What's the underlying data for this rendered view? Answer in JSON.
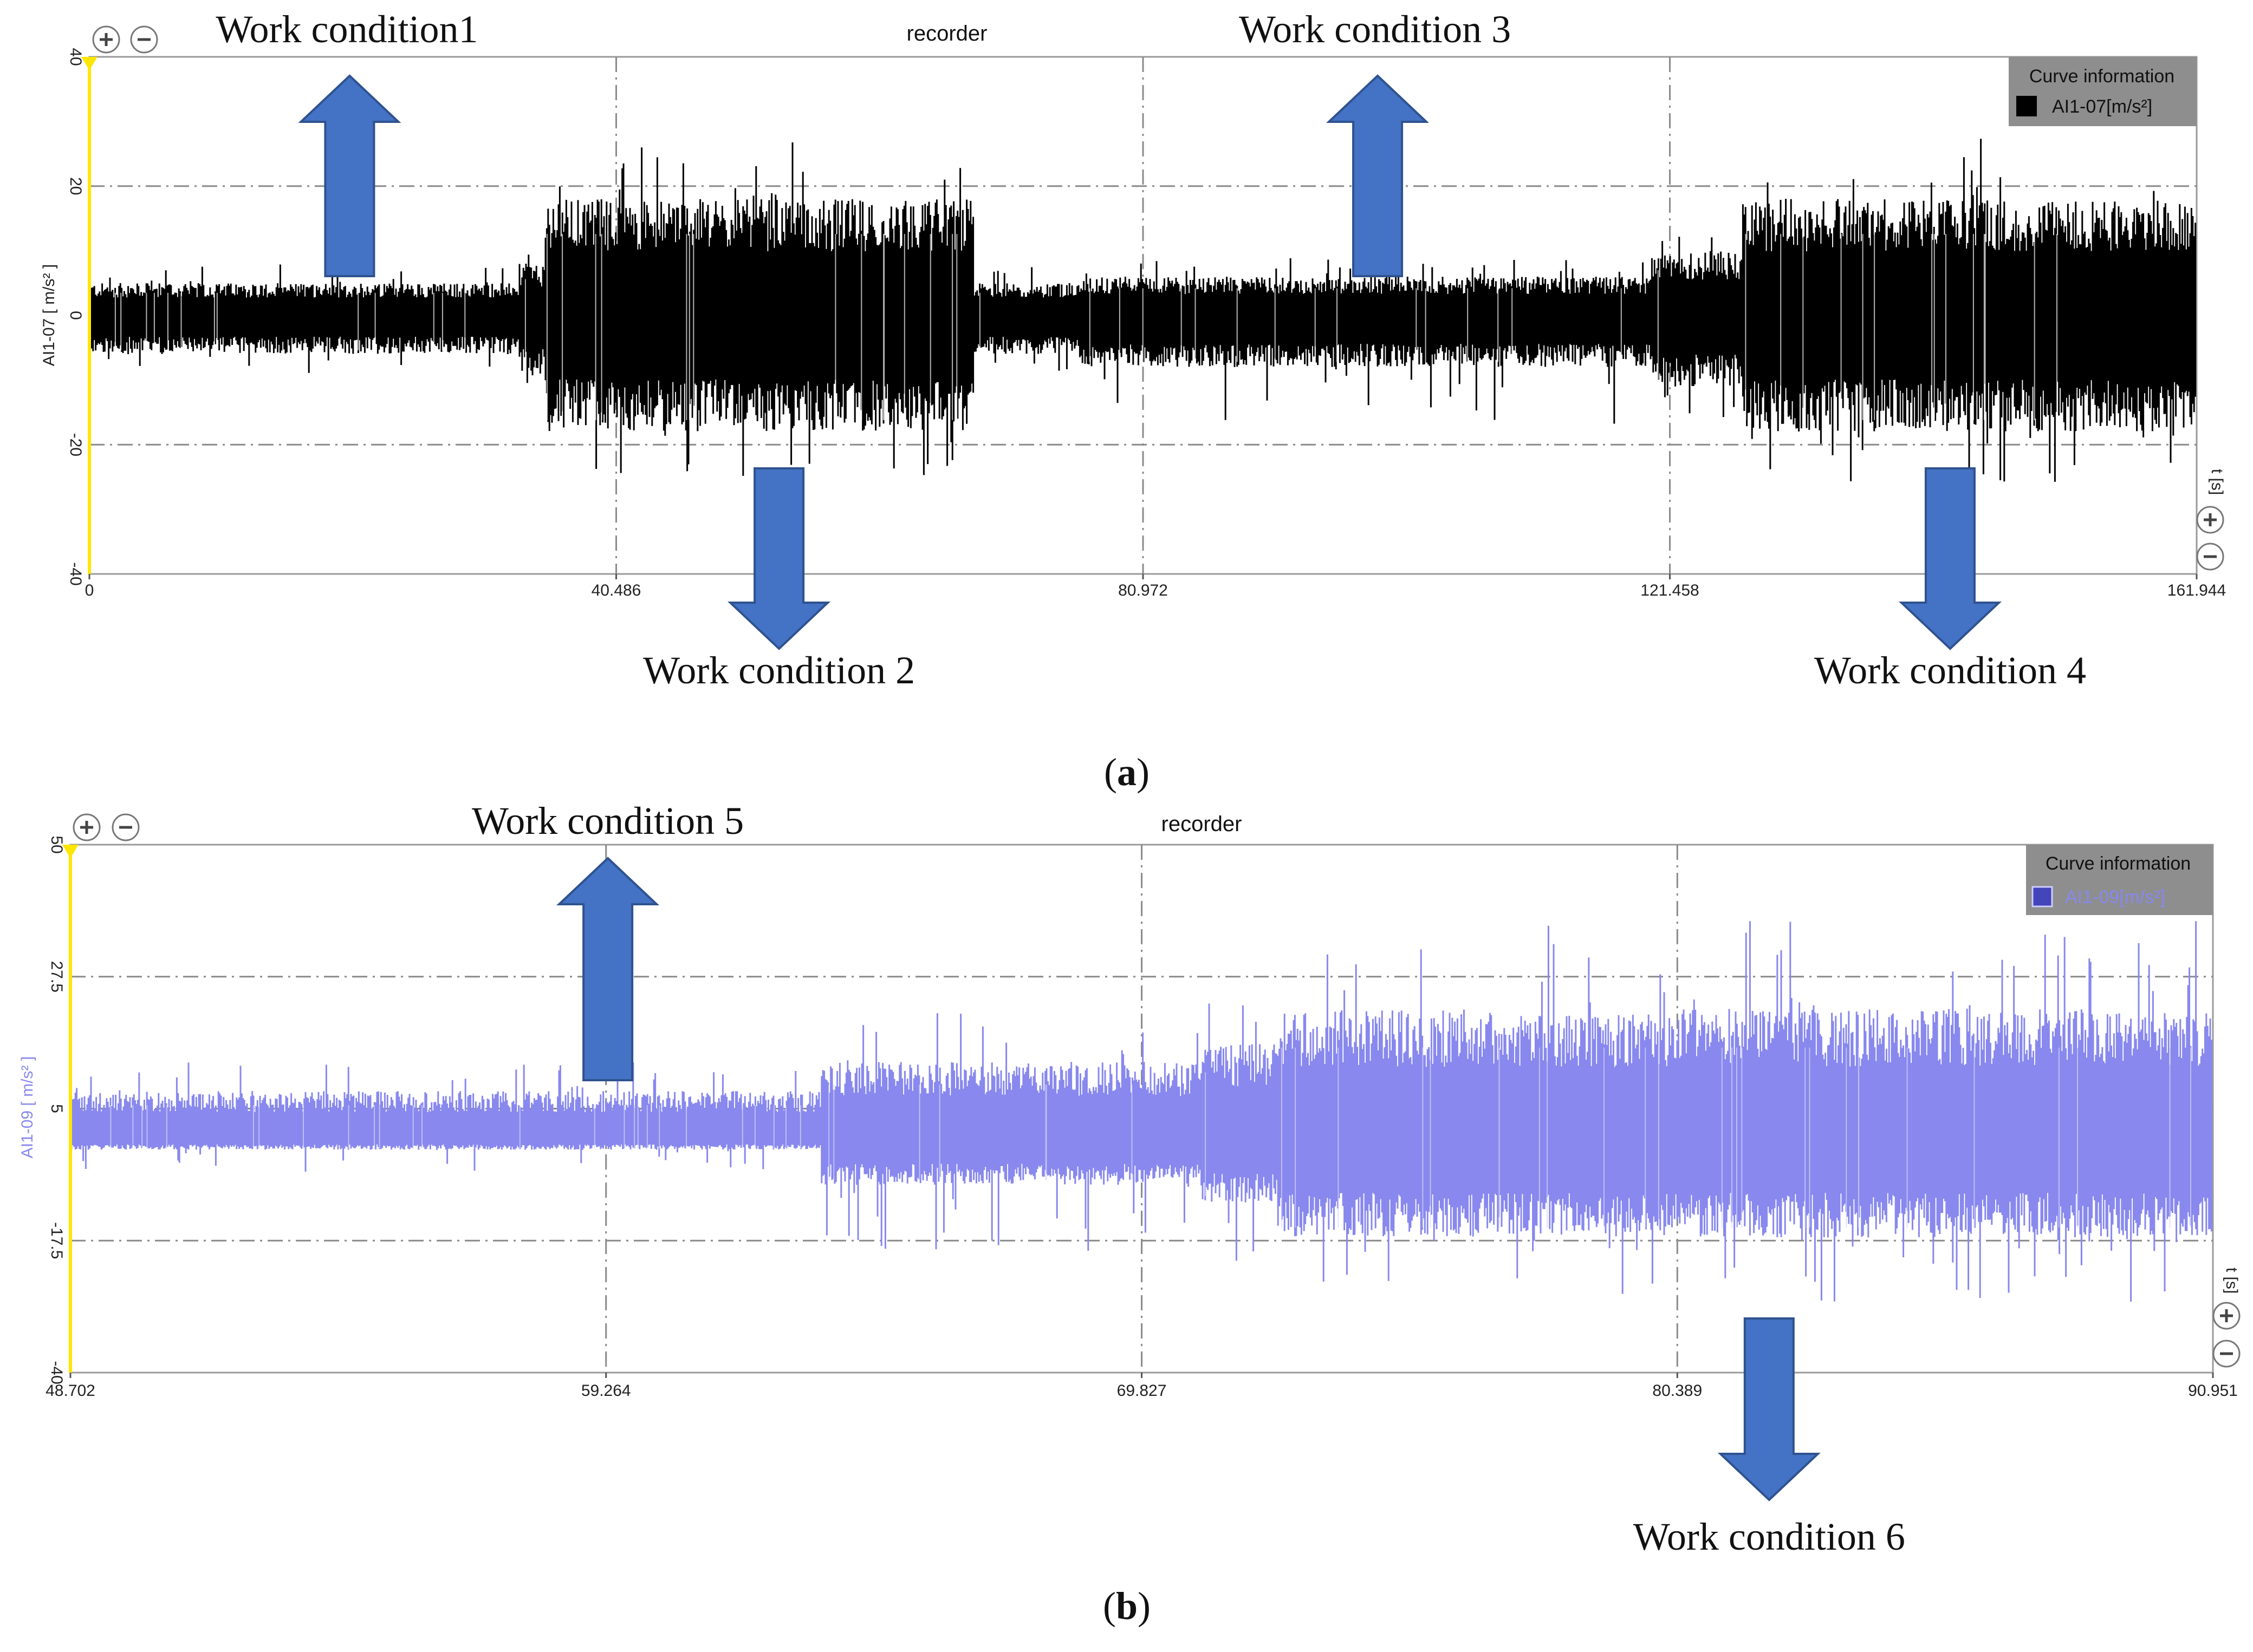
{
  "charts": [
    {
      "id": "a",
      "panel_label": "a",
      "title": "recorder",
      "type": "line",
      "ylabel": "AI1-07  [ m/s² ]",
      "xunit_label": "t [s]",
      "xlim": [
        0,
        161.944
      ],
      "ylim": [
        -40,
        40
      ],
      "x_ticks": [
        0,
        40.486,
        80.972,
        121.458,
        161.944
      ],
      "x_tick_labels": [
        "0",
        "40.486",
        "80.972",
        "121.458",
        "161.944"
      ],
      "y_ticks": [
        40,
        20,
        0,
        -20,
        -40
      ],
      "y_tick_labels": [
        "40",
        "20",
        "0",
        "-20",
        "-40"
      ],
      "grid": true,
      "legend": {
        "title": "Curve information",
        "entry": "AI1-07[m/s²]",
        "placement": "top-right"
      },
      "series_color": "#000000",
      "signal_segments": [
        {
          "x0": 0,
          "x1": 33,
          "upper": 5,
          "lower": -6,
          "spike_max": 8,
          "spike_min": -9
        },
        {
          "x0": 33,
          "x1": 35,
          "upper": 8,
          "lower": -9,
          "spike_max": 10,
          "spike_min": -11
        },
        {
          "x0": 35,
          "x1": 68,
          "upper": 18,
          "lower": -18,
          "spike_max": 29,
          "spike_min": -25
        },
        {
          "x0": 68,
          "x1": 76,
          "upper": 5,
          "lower": -6,
          "spike_max": 8,
          "spike_min": -9
        },
        {
          "x0": 76,
          "x1": 120,
          "upper": 6,
          "lower": -8,
          "spike_max": 9,
          "spike_min": -17
        },
        {
          "x0": 120,
          "x1": 127,
          "upper": 10,
          "lower": -11,
          "spike_max": 14,
          "spike_min": -17
        },
        {
          "x0": 127,
          "x1": 161.944,
          "upper": 18,
          "lower": -18,
          "spike_max": 28,
          "spike_min": -26
        }
      ],
      "annotations": [
        {
          "label": "Work condition1",
          "x": 20,
          "direction": "up"
        },
        {
          "label": "Work condition 2",
          "x": 53,
          "direction": "down"
        },
        {
          "label": "Work condition 3",
          "x": 99,
          "direction": "up"
        },
        {
          "label": "Work condition 4",
          "x": 143,
          "direction": "down"
        }
      ]
    },
    {
      "id": "b",
      "panel_label": "b",
      "title": "recorder",
      "type": "line",
      "ylabel": "AI1-09  [ m/s² ]",
      "xunit_label": "t [s]",
      "xlim": [
        48.702,
        90.951
      ],
      "ylim": [
        -40,
        50
      ],
      "x_ticks": [
        48.702,
        59.264,
        69.827,
        80.389,
        90.951
      ],
      "x_tick_labels": [
        "48.702",
        "59.264",
        "69.827",
        "80.389",
        "90.951"
      ],
      "y_ticks": [
        50,
        27.5,
        5,
        -17.5,
        -40
      ],
      "y_tick_labels": [
        "50",
        "27.5",
        "5",
        "-17.5",
        "-40"
      ],
      "grid": true,
      "legend": {
        "title": "Curve information",
        "entry": "AI1-09[m/s²]",
        "placement": "top-right"
      },
      "series_color": "#8888ee",
      "signal_segments": [
        {
          "x0": 48.702,
          "x1": 63.5,
          "upper": 8,
          "lower": -2,
          "spike_max": 13,
          "spike_min": -6
        },
        {
          "x0": 63.5,
          "x1": 71,
          "upper": 13,
          "lower": -8,
          "spike_max": 22,
          "spike_min": -20
        },
        {
          "x0": 71,
          "x1": 72.5,
          "upper": 16,
          "lower": -11,
          "spike_max": 25,
          "spike_min": -21
        },
        {
          "x0": 72.5,
          "x1": 90.951,
          "upper": 22,
          "lower": -17,
          "spike_max": 37,
          "spike_min": -28
        }
      ],
      "annotations": [
        {
          "label": "Work condition 5",
          "x": 59.3,
          "direction": "up"
        },
        {
          "label": "Work condition 6",
          "x": 82.2,
          "direction": "down"
        }
      ]
    }
  ]
}
